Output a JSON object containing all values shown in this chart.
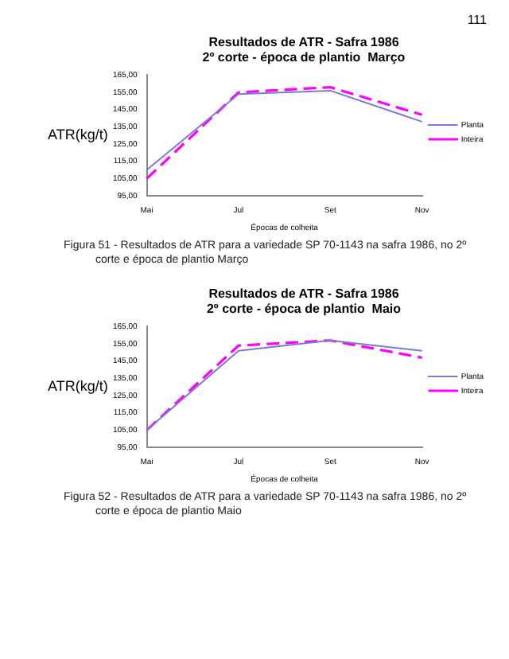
{
  "chart_data": [
    {
      "type": "line",
      "title": [
        "Resultados de ATR - Safra 1986",
        "2º corte - época de plantio  Março"
      ],
      "xlabel": "Épocas de colheita",
      "ylabel": "ATR(kg/t)",
      "categories": [
        "Mai",
        "Jul",
        "Set",
        "Nov"
      ],
      "series": [
        {
          "name": "Planta",
          "color": "#7b7bd0",
          "line_style": "solid",
          "values": [
            110,
            154,
            156,
            138
          ]
        },
        {
          "name": "Inteira",
          "color": "#ff00ff",
          "line_style": "dashed",
          "values": [
            105,
            155,
            158,
            142
          ]
        }
      ],
      "ylim": [
        95,
        165
      ],
      "yticks": [
        {
          "value": 95,
          "label": "95,00"
        },
        {
          "value": 105,
          "label": "105,00"
        },
        {
          "value": 115,
          "label": "115,00"
        },
        {
          "value": 125,
          "label": "125,00"
        },
        {
          "value": 135,
          "label": "135,00"
        },
        {
          "value": 145,
          "label": "145,00"
        },
        {
          "value": 155,
          "label": "155,00"
        },
        {
          "value": 165,
          "label": "165,00"
        }
      ],
      "legend": "right",
      "marker": "none",
      "annotations": [
        "111",
        "Figura 51 - Resultados de ATR para a variedade SP 70-1143 na safra 1986, no 2º corte e época de plantio Março"
      ]
    },
    {
      "type": "line",
      "title": [
        "Resultados de ATR - Safra 1986",
        "2º corte - época de plantio  Maio"
      ],
      "xlabel": "Épocas de colheita",
      "ylabel": "ATR(kg/t)",
      "categories": [
        "Mai",
        "Jul",
        "Set",
        "Nov"
      ],
      "series": [
        {
          "name": "Planta",
          "color": "#7b7bd0",
          "line_style": "solid",
          "values": [
            105,
            151,
            157,
            151
          ]
        },
        {
          "name": "Inteira",
          "color": "#ff00ff",
          "line_style": "dashed",
          "values": [
            105,
            154,
            157,
            147
          ]
        }
      ],
      "ylim": [
        95,
        165
      ],
      "yticks": [
        {
          "value": 95,
          "label": "95,00"
        },
        {
          "value": 105,
          "label": "105,00"
        },
        {
          "value": 115,
          "label": "115,00"
        },
        {
          "value": 125,
          "label": "125,00"
        },
        {
          "value": 135,
          "label": "135,00"
        },
        {
          "value": 145,
          "label": "145,00"
        },
        {
          "value": 155,
          "label": "155,00"
        },
        {
          "value": 165,
          "label": "165,00"
        }
      ],
      "legend": "right",
      "marker": "none",
      "annotations": [
        "Figura 52 - Resultados de ATR para a variedade SP 70-1143 na safra 1986, no 2º corte e época de plantio Maio"
      ]
    }
  ]
}
